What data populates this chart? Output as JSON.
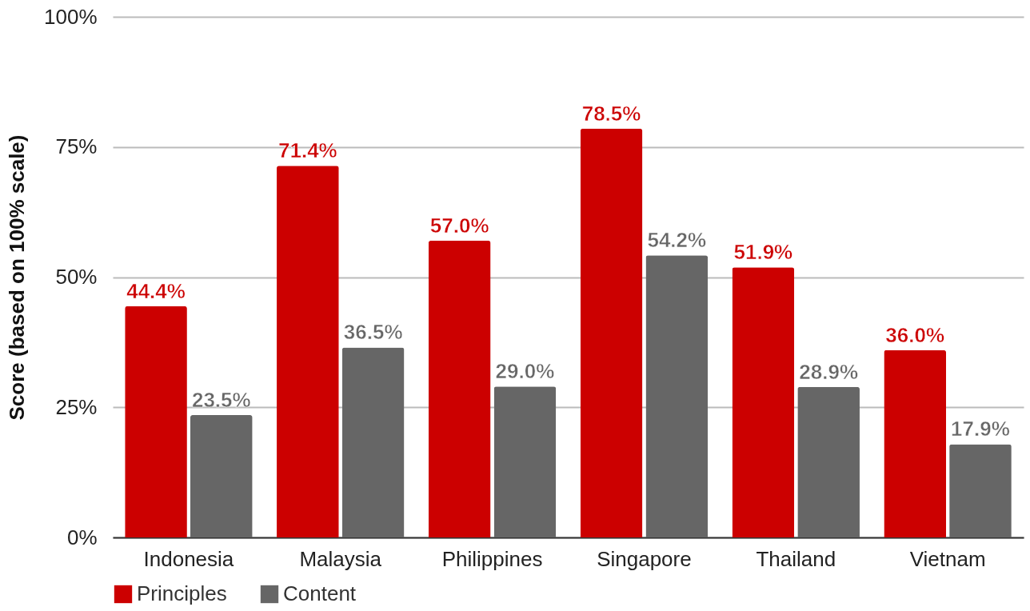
{
  "chart_data": {
    "type": "bar",
    "ylabel": "Score (based on 100% scale)",
    "categories": [
      "Indonesia",
      "Malaysia",
      "Philippines",
      "Singapore",
      "Thailand",
      "Vietnam"
    ],
    "series": [
      {
        "name": "Principles",
        "color": "#cc0000",
        "values": [
          44.4,
          71.4,
          57.0,
          78.5,
          51.9,
          36.0
        ],
        "value_labels": [
          "44.4%",
          "71.4%",
          "57.0%",
          "78.5%",
          "51.9%",
          "36.0%"
        ]
      },
      {
        "name": "Content",
        "color": "#666666",
        "values": [
          23.5,
          36.5,
          29.0,
          54.2,
          28.9,
          17.9
        ],
        "value_labels": [
          "23.5%",
          "36.5%",
          "29.0%",
          "54.2%",
          "28.9%",
          "17.9%"
        ]
      }
    ],
    "ylim": [
      0,
      100
    ],
    "yticks": [
      {
        "value": 0,
        "label": "0%"
      },
      {
        "value": 25,
        "label": "25%"
      },
      {
        "value": 50,
        "label": "50%"
      },
      {
        "value": 75,
        "label": "75%"
      },
      {
        "value": 100,
        "label": "100%"
      }
    ],
    "grid": "y",
    "legend": "bottom"
  }
}
